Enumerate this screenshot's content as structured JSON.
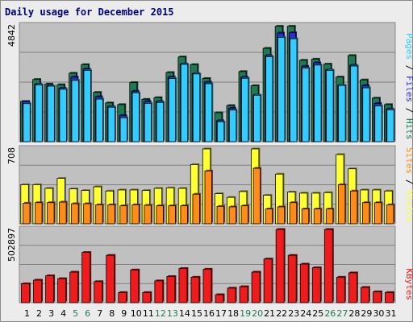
{
  "chart_data": {
    "title": "Daily usage for December 2015",
    "x": [
      "1",
      "2",
      "3",
      "4",
      "5",
      "6",
      "7",
      "8",
      "9",
      "10",
      "11",
      "12",
      "13",
      "14",
      "15",
      "16",
      "17",
      "18",
      "19",
      "20",
      "21",
      "22",
      "23",
      "24",
      "25",
      "26",
      "27",
      "28",
      "29",
      "30",
      "31"
    ],
    "weekend_days": [
      "5",
      "6",
      "12",
      "13",
      "19",
      "20",
      "26",
      "27"
    ],
    "colors": {
      "hits": "#1e7a52",
      "files": "#2a2adf",
      "pages": "#33ccff",
      "visits": "#ffff33",
      "sites": "#ff8c1a",
      "kbytes": "#ee1c1c",
      "weekday_label": "#000000",
      "weekend_label": "#1e7a52",
      "panel_bg": "#c0c0c0",
      "gridline": "#808080"
    },
    "panels": [
      {
        "type": "bar",
        "id": "hits_files_pages",
        "max_label": "4842",
        "ylim": [
          0,
          4842
        ],
        "legend": [
          {
            "text": "Pages",
            "color": "#33ccff"
          },
          {
            "text": " / ",
            "color": "#000000"
          },
          {
            "text": "Files",
            "color": "#2a2adf"
          },
          {
            "text": " / ",
            "color": "#000000"
          },
          {
            "text": "Hits",
            "color": "#1e7a52"
          }
        ],
        "series": [
          {
            "name": "Hits",
            "values": [
              1680,
              2600,
              2410,
              2380,
              2860,
              3220,
              2060,
              1620,
              1550,
              2470,
              1770,
              1840,
              2890,
              3540,
              3220,
              2640,
              1210,
              1510,
              2930,
              2340,
              3900,
              4820,
              4820,
              3400,
              3450,
              3240,
              2700,
              3600,
              2580,
              1820,
              1550
            ]
          },
          {
            "name": "Files",
            "values": [
              1680,
              2400,
              2340,
              2240,
              2700,
              3040,
              1880,
              1470,
              1100,
              2110,
              1680,
              1680,
              2700,
              3250,
              2850,
              2490,
              880,
              1400,
              2700,
              1950,
              3600,
              4540,
              4550,
              3150,
              3300,
              3000,
              2360,
              3200,
              2350,
              1600,
              1370
            ]
          },
          {
            "name": "Pages",
            "values": [
              1590,
              2370,
              2320,
              2190,
              2560,
              2980,
              1780,
              1440,
              1000,
              2040,
              1600,
              1640,
              2640,
              3230,
              2830,
              2420,
              830,
              1320,
              2650,
              1940,
              3550,
              4360,
              4300,
              3070,
              3200,
              2980,
              2350,
              3160,
              2250,
              1490,
              1330
            ]
          }
        ]
      },
      {
        "type": "bar",
        "id": "visits_sites",
        "max_label": "708",
        "ylim": [
          0,
          708
        ],
        "legend": [
          {
            "text": "Sites",
            "color": "#ff8c1a"
          },
          {
            "text": " / ",
            "color": "#000000"
          },
          {
            "text": "Visits",
            "color": "#ffff33"
          }
        ],
        "series": [
          {
            "name": "Visits",
            "values": [
              370,
              370,
              335,
              430,
              330,
              315,
              350,
              310,
              320,
              320,
              315,
              335,
              340,
              335,
              560,
              708,
              285,
              250,
              305,
              708,
              270,
              470,
              300,
              290,
              290,
              295,
              655,
              520,
              320,
              320,
              310
            ]
          },
          {
            "name": "Sites",
            "values": [
              195,
              200,
              200,
              205,
              190,
              190,
              180,
              180,
              170,
              180,
              175,
              170,
              170,
              170,
              280,
              500,
              165,
              160,
              170,
              525,
              140,
              160,
              200,
              140,
              140,
              140,
              370,
              310,
              200,
              200,
              180
            ]
          }
        ]
      },
      {
        "type": "bar",
        "id": "kbytes",
        "max_label": "502897",
        "ylim": [
          0,
          502897
        ],
        "legend": [
          {
            "text": "KBytes",
            "color": "#ee1c1c"
          }
        ],
        "series": [
          {
            "name": "KBytes",
            "values": [
              130000,
              155000,
              185000,
              165000,
              210000,
              345000,
              145000,
              325000,
              70000,
              225000,
              70000,
              150000,
              180000,
              235000,
              175000,
              230000,
              55000,
              100000,
              110000,
              210000,
              300000,
              502897,
              325000,
              265000,
              240000,
              502897,
              175000,
              205000,
              105000,
              75000,
              70000
            ]
          }
        ]
      }
    ]
  }
}
